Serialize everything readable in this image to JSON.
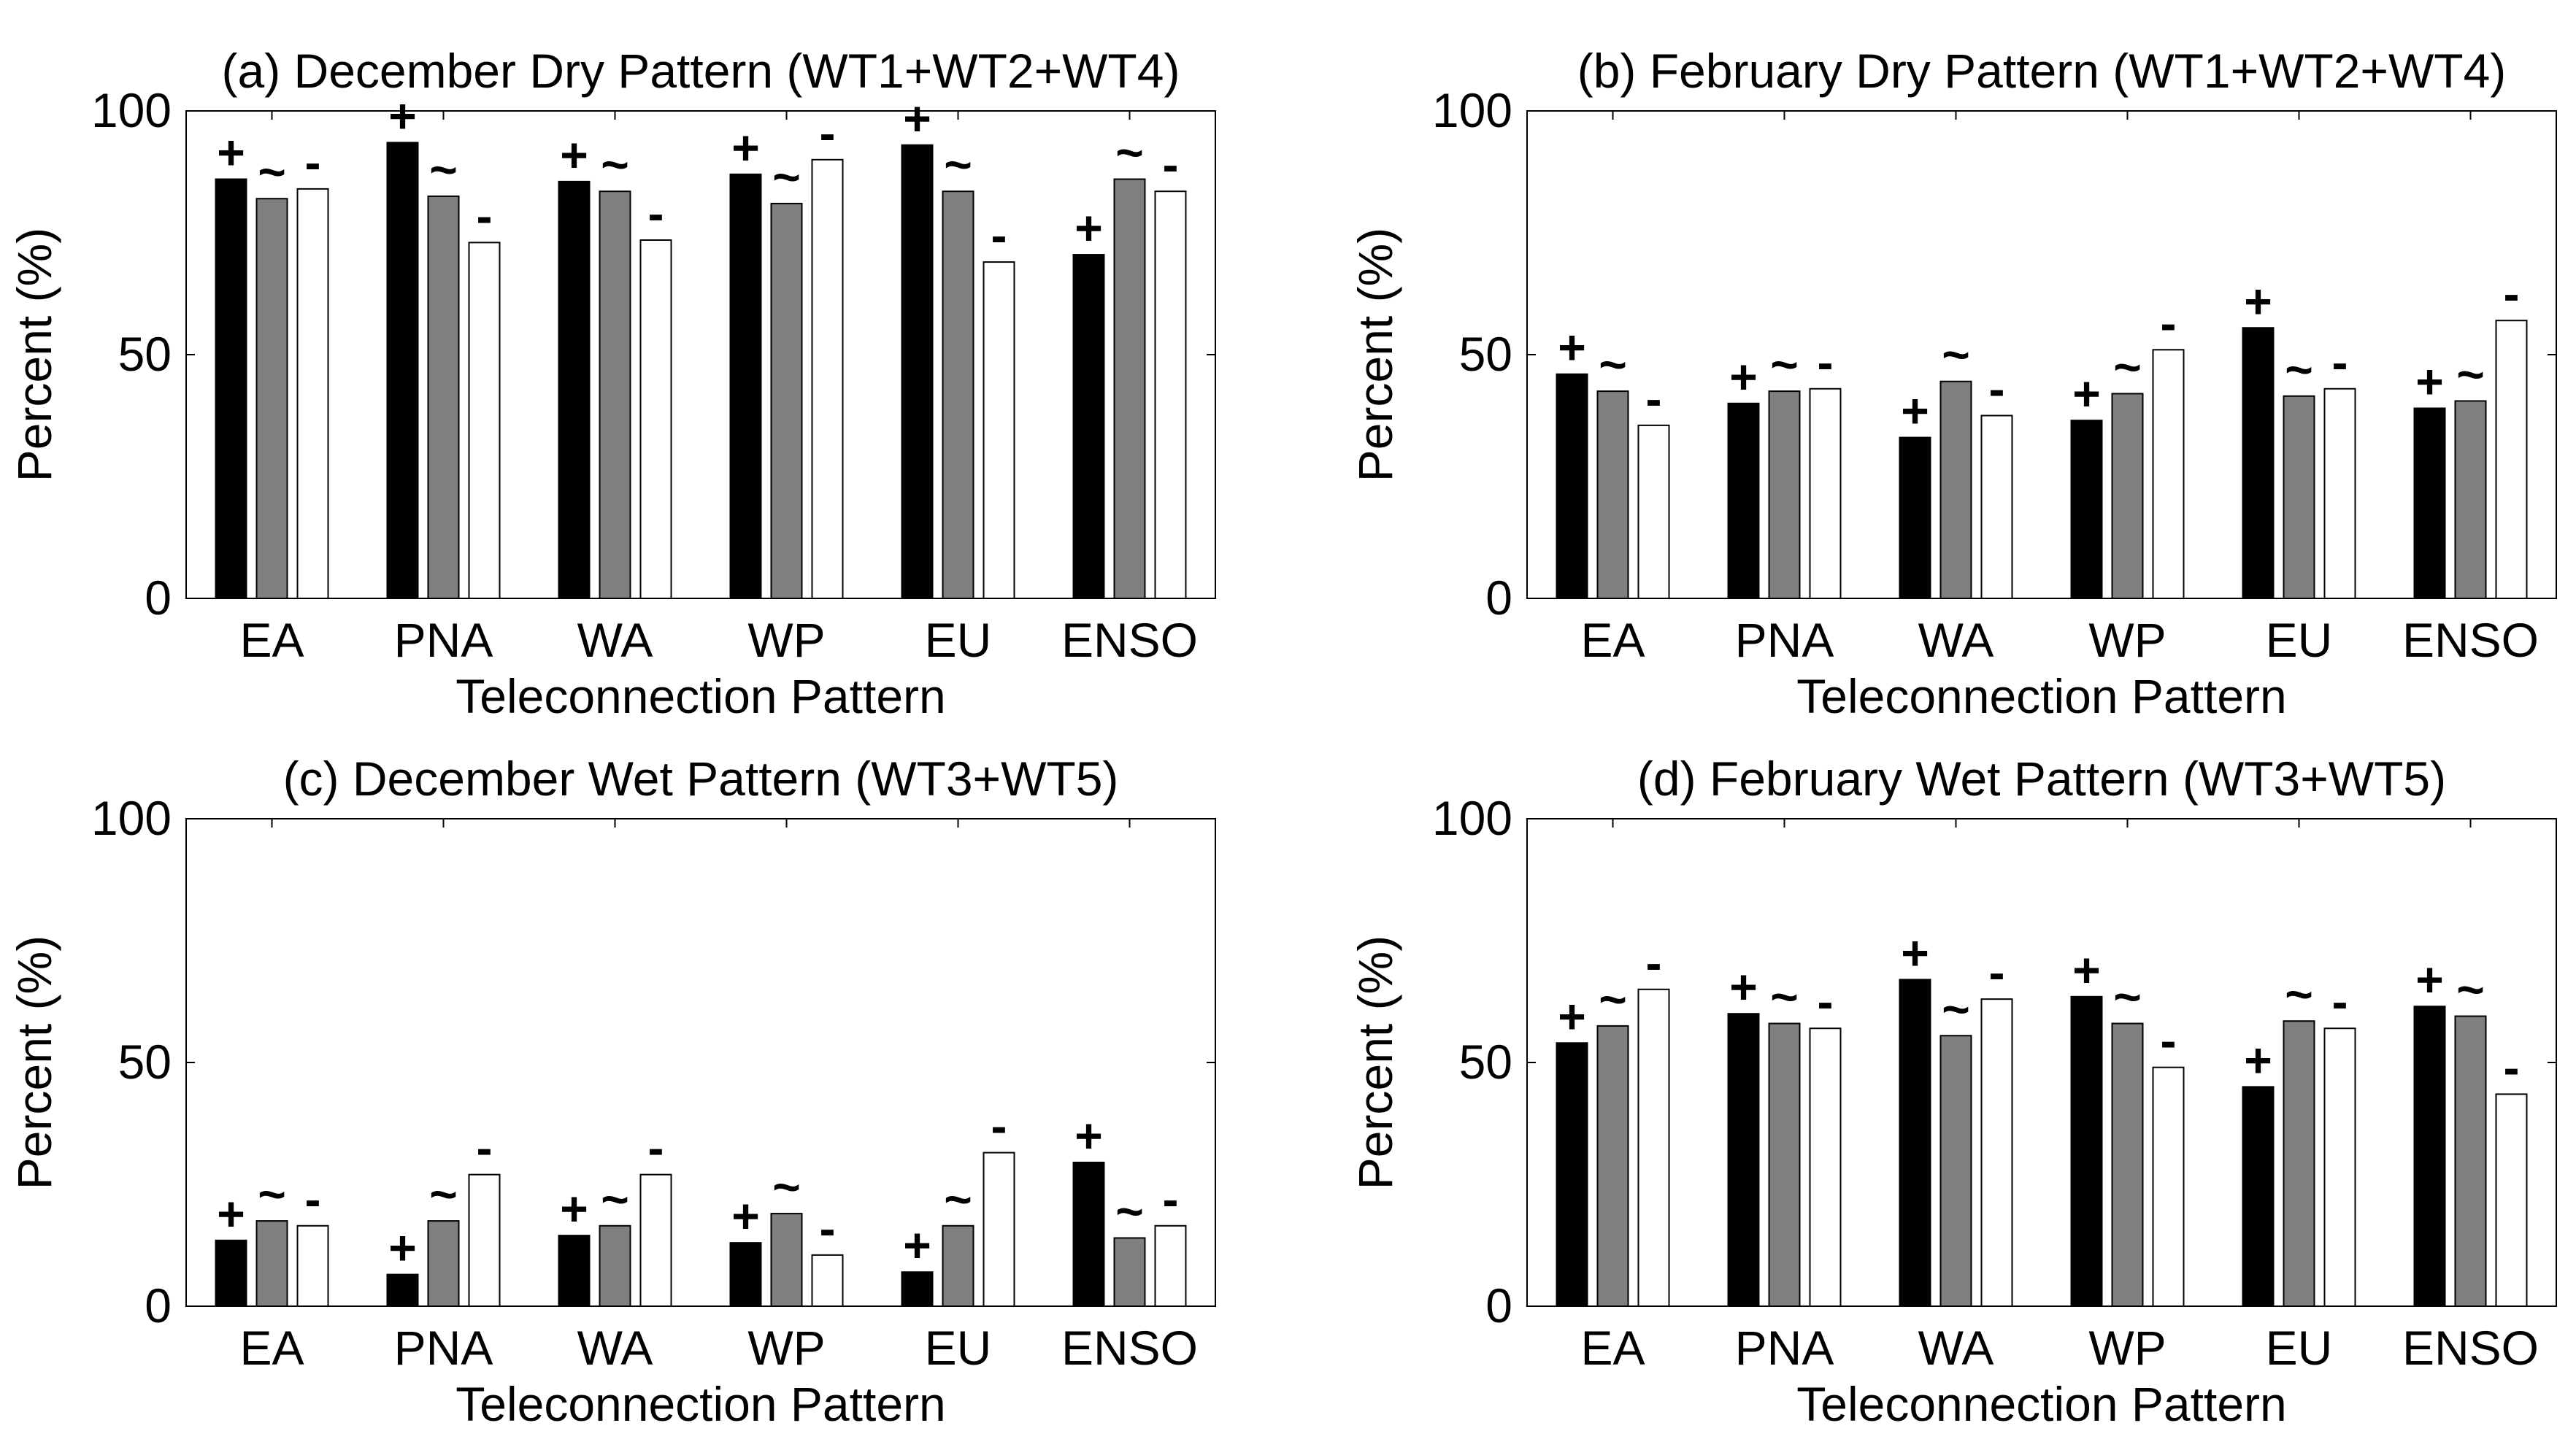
{
  "figure": {
    "title": ""
  },
  "chart_data": [
    {
      "id": "a",
      "type": "bar",
      "title": "(a) December Dry Pattern (WT1+WT2+WT4)",
      "xlabel": "Teleconnection Pattern",
      "ylabel": "Percent (%)",
      "ylim": [
        0,
        100
      ],
      "yticks": [
        0,
        50,
        100
      ],
      "grid": false,
      "categories": [
        "EA",
        "PNA",
        "WA",
        "WP",
        "EU",
        "ENSO"
      ],
      "series": [
        {
          "name": "+",
          "color": "#000000",
          "values": [
            86,
            93.5,
            85.5,
            87,
            93,
            70.5
          ]
        },
        {
          "name": "~",
          "color": "#808080",
          "values": [
            82,
            82.5,
            83.5,
            81,
            83.5,
            86
          ]
        },
        {
          "name": "-",
          "color": "#ffffff",
          "values": [
            84,
            73,
            73.5,
            90,
            69,
            83.5
          ]
        }
      ],
      "bar_labels": [
        "+",
        "~",
        "-"
      ]
    },
    {
      "id": "b",
      "type": "bar",
      "title": "(b) February Dry Pattern (WT1+WT2+WT4)",
      "xlabel": "Teleconnection Pattern",
      "ylabel": "Percent (%)",
      "ylim": [
        0,
        100
      ],
      "yticks": [
        0,
        50,
        100
      ],
      "grid": false,
      "categories": [
        "EA",
        "PNA",
        "WA",
        "WP",
        "EU",
        "ENSO"
      ],
      "series": [
        {
          "name": "+",
          "color": "#000000",
          "values": [
            46,
            40,
            33,
            36.5,
            55.5,
            39
          ]
        },
        {
          "name": "~",
          "color": "#808080",
          "values": [
            42.5,
            42.5,
            44.5,
            42,
            41.5,
            40.5
          ]
        },
        {
          "name": "-",
          "color": "#ffffff",
          "values": [
            35.5,
            43,
            37.5,
            51,
            43,
            57
          ]
        }
      ],
      "bar_labels": [
        "+",
        "~",
        "-"
      ]
    },
    {
      "id": "c",
      "type": "bar",
      "title": "(c) December Wet Pattern (WT3+WT5)",
      "xlabel": "Teleconnection Pattern",
      "ylabel": "Percent (%)",
      "ylim": [
        0,
        100
      ],
      "yticks": [
        0,
        50,
        100
      ],
      "grid": false,
      "categories": [
        "EA",
        "PNA",
        "WA",
        "WP",
        "EU",
        "ENSO"
      ],
      "series": [
        {
          "name": "+",
          "color": "#000000",
          "values": [
            13.5,
            6.5,
            14.5,
            13,
            7,
            29.5
          ]
        },
        {
          "name": "~",
          "color": "#808080",
          "values": [
            17.5,
            17.5,
            16.5,
            19,
            16.5,
            14
          ]
        },
        {
          "name": "-",
          "color": "#ffffff",
          "values": [
            16.5,
            27,
            27,
            10.5,
            31.5,
            16.5
          ]
        }
      ],
      "bar_labels": [
        "+",
        "~",
        "-"
      ]
    },
    {
      "id": "d",
      "type": "bar",
      "title": "(d) February Wet Pattern (WT3+WT5)",
      "xlabel": "Teleconnection Pattern",
      "ylabel": "Percent (%)",
      "ylim": [
        0,
        100
      ],
      "yticks": [
        0,
        50,
        100
      ],
      "grid": false,
      "categories": [
        "EA",
        "PNA",
        "WA",
        "WP",
        "EU",
        "ENSO"
      ],
      "series": [
        {
          "name": "+",
          "color": "#000000",
          "values": [
            54,
            60,
            67,
            63.5,
            45,
            61.5
          ]
        },
        {
          "name": "~",
          "color": "#808080",
          "values": [
            57.5,
            58,
            55.5,
            58,
            58.5,
            59.5
          ]
        },
        {
          "name": "-",
          "color": "#ffffff",
          "values": [
            65,
            57,
            63,
            49,
            57,
            43.5
          ]
        }
      ],
      "bar_labels": [
        "+",
        "~",
        "-"
      ]
    }
  ]
}
